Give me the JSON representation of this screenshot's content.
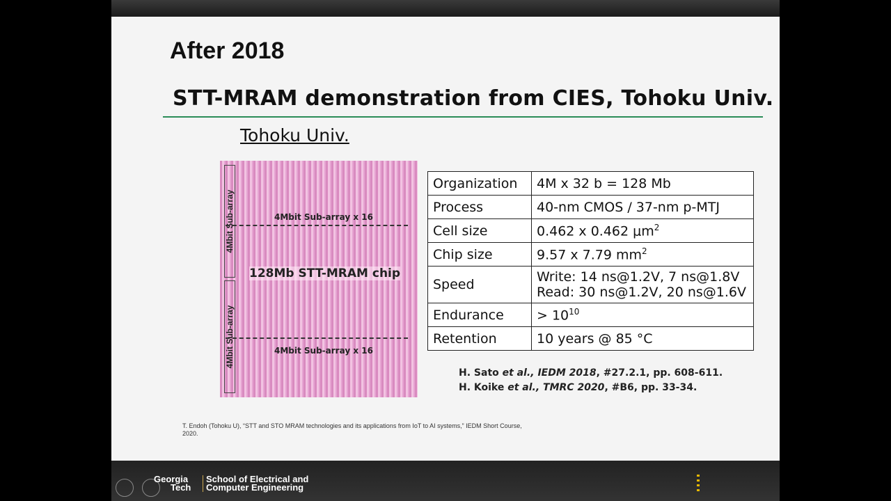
{
  "slide": {
    "heading": "After 2018",
    "title": "STT-MRAM demonstration from CIES, Tohoku Univ.",
    "source_label": "Tohoku Univ.",
    "chip_image": {
      "top_label": "4Mbit Sub-array x 16",
      "center_label": "128Mb STT-MRAM chip",
      "bottom_label": "4Mbit Sub-array x 16",
      "side_labels": [
        "4Mbit Sub-array",
        "4Mbit Sub-array"
      ]
    },
    "table": {
      "rows": [
        {
          "label": "Organization",
          "lines": [
            [
              {
                "text": "4M x 32 b = 128 Mb"
              }
            ]
          ]
        },
        {
          "label": "Process",
          "lines": [
            [
              {
                "text": "40-nm CMOS / 37-nm p-MTJ"
              }
            ]
          ]
        },
        {
          "label": "Cell size",
          "lines": [
            [
              {
                "text": "0.462 x 0.462 μm"
              },
              {
                "text": "2",
                "sup": true
              }
            ]
          ]
        },
        {
          "label": "Chip size",
          "lines": [
            [
              {
                "text": "9.57 x 7.79 mm"
              },
              {
                "text": "2",
                "sup": true
              }
            ]
          ]
        },
        {
          "label": "Speed",
          "lines": [
            [
              {
                "text": "Write: 14 ns@1.2V, 7 ns@1.8V"
              }
            ],
            [
              {
                "text": "Read: 30 ns@1.2V, 20 ns@1.6V"
              }
            ]
          ]
        },
        {
          "label": "Endurance",
          "lines": [
            [
              {
                "text": "> 10"
              },
              {
                "text": "10",
                "sup": true
              }
            ]
          ]
        },
        {
          "label": "Retention",
          "lines": [
            [
              {
                "text": "10 years @ 85 °C"
              }
            ]
          ]
        }
      ]
    },
    "references": [
      [
        {
          "text": "H. Sato "
        },
        {
          "text": "et al., IEDM 2018",
          "italic": true
        },
        {
          "text": ", #27.2.1, pp. 608-611."
        }
      ],
      [
        {
          "text": "H. Koike "
        },
        {
          "text": "et al., TMRC 2020",
          "italic": true
        },
        {
          "text": ", #B6, pp. 33-34."
        }
      ]
    ],
    "footnote": "T. Endoh (Tohoku U), “STT and STO MRAM technologies and its applications from IoT to AI systems,” IEDM Short Course, 2020."
  },
  "footer": {
    "logo": [
      "Georgia",
      "Tech"
    ],
    "school": [
      "School of Electrical and",
      "Computer Engineering"
    ]
  }
}
